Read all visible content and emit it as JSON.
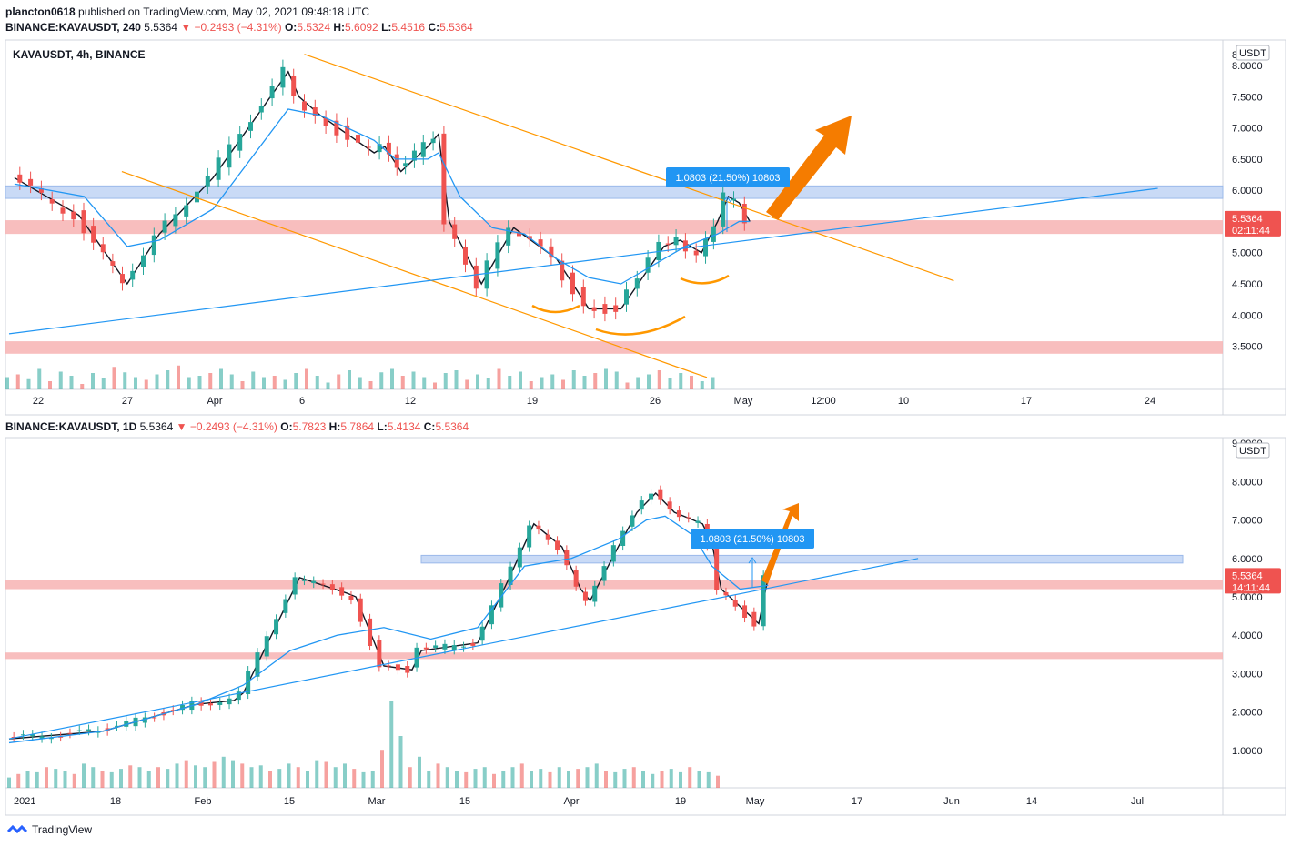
{
  "header": {
    "user": "plancton0618",
    "published_text": "published on TradingView.com, May 02, 2021 09:48:18 UTC",
    "line2": {
      "symbol": "BINANCE:KAVAUSDT, 240",
      "price": "5.5364",
      "change": "−0.2493 (−4.31%)",
      "O": "5.5324",
      "H": "5.6092",
      "L": "5.4516",
      "C": "5.5364"
    },
    "line3": {
      "symbol": "BINANCE:KAVAUSDT, 1D",
      "price": "5.5364",
      "change": "−0.2493 (−4.31%)",
      "O": "5.7823",
      "H": "5.7864",
      "L": "5.4134",
      "C": "5.5364"
    }
  },
  "colors": {
    "up": "#26a69a",
    "down": "#ef5350",
    "ma": "#2196f3",
    "trend": "#ff9800",
    "support_band": "#f7b3b3",
    "resistance_band": "#bfd4f5",
    "arrow": "#f57c00",
    "badge": "#2196f3",
    "last_price": "#ef5350"
  },
  "footer": {
    "brand": "TradingView"
  },
  "chart_data": [
    {
      "type": "line",
      "title": "KAVAUSDT, 4h, BINANCE",
      "currency": "USDT",
      "ylim": [
        3.1,
        8.35
      ],
      "y_ticks": [
        "8.0000",
        "7.5000",
        "7.0000",
        "6.5000",
        "6.0000",
        "5.5000",
        "5.0000",
        "4.5000",
        "4.0000",
        "3.5000"
      ],
      "y_top_partial": "8",
      "x_ticks": [
        "22",
        "27",
        "Apr",
        "6",
        "12",
        "19",
        "26",
        "May",
        "12:00",
        "10",
        "17",
        "24"
      ],
      "last_price": "5.5364",
      "countdown": "02:11:44",
      "measure_label": "1.0803 (21.50%) 10803",
      "bands": [
        {
          "kind": "resistance",
          "from": 5.87,
          "to": 6.07
        },
        {
          "kind": "support",
          "from": 5.3,
          "to": 5.52
        },
        {
          "kind": "support",
          "from": 3.38,
          "to": 3.58
        }
      ],
      "series": [
        {
          "type": "line",
          "x": [
            0.5,
            6.5,
            11,
            14,
            19,
            26,
            27,
            29,
            34,
            35,
            36.5,
            39,
            40,
            41,
            44,
            47,
            51,
            54,
            57,
            59,
            61,
            62.5,
            64.5,
            66,
            67,
            68,
            69
          ],
          "values": [
            6.2,
            5.6,
            4.5,
            5.3,
            6.2,
            7.9,
            7.5,
            7.2,
            6.6,
            6.7,
            6.3,
            6.7,
            6.9,
            5.5,
            4.5,
            5.4,
            4.9,
            4.1,
            4.1,
            4.6,
            5.1,
            5.2,
            5.0,
            5.5,
            5.9,
            5.8,
            5.5
          ]
        },
        {
          "type": "line",
          "x": [
            0.5,
            7,
            11,
            14,
            19,
            26,
            29,
            34,
            36,
            39,
            40,
            42,
            45,
            48,
            51,
            54,
            57,
            60,
            63,
            66,
            68,
            69
          ],
          "values": [
            6.1,
            5.9,
            5.1,
            5.2,
            5.7,
            7.3,
            7.2,
            6.8,
            6.5,
            6.5,
            6.6,
            5.9,
            5.4,
            5.3,
            4.9,
            4.6,
            4.5,
            4.8,
            5.1,
            5.3,
            5.5,
            5.5
          ]
        }
      ],
      "trendlines": [
        {
          "kind": "channel-top",
          "x": [
            27.5,
            88
          ],
          "y": [
            8.18,
            4.55
          ]
        },
        {
          "kind": "channel-bottom",
          "x": [
            10.5,
            65
          ],
          "y": [
            6.3,
            3.0
          ]
        },
        {
          "kind": "rising-support",
          "x": [
            0,
            107
          ],
          "y": [
            3.7,
            6.03
          ]
        }
      ],
      "volume": [
        18,
        22,
        15,
        30,
        12,
        26,
        20,
        8,
        24,
        16,
        33,
        25,
        18,
        14,
        22,
        28,
        35,
        18,
        20,
        24,
        30,
        22,
        12,
        26,
        18,
        20,
        14,
        24,
        30,
        20,
        10,
        22,
        28,
        18,
        12,
        25,
        30,
        20,
        26,
        18,
        10,
        24,
        28,
        14,
        22,
        16,
        30,
        20,
        26,
        12,
        18,
        22,
        14,
        28,
        20,
        24,
        30,
        26,
        10,
        18,
        22,
        28,
        16,
        24,
        20,
        12,
        18
      ]
    },
    {
      "type": "line",
      "title": "",
      "currency": "USDT",
      "ylim": [
        0.5,
        9.05
      ],
      "y_ticks": [
        "9.0000",
        "8.0000",
        "7.0000",
        "6.0000",
        "5.0000",
        "4.0000",
        "3.0000",
        "2.0000",
        "1.0000"
      ],
      "x_ticks": [
        "2021",
        "18",
        "Feb",
        "15",
        "Mar",
        "15",
        "Apr",
        "19",
        "May",
        "17",
        "Jun",
        "14",
        "Jul"
      ],
      "last_price": "5.5364",
      "countdown": "14:11:44",
      "measure_label": "1.0803 (21.50%) 10803",
      "bands": [
        {
          "kind": "resistance",
          "from": 5.88,
          "to": 6.08
        },
        {
          "kind": "support",
          "from": 5.2,
          "to": 5.43
        },
        {
          "kind": "support",
          "from": 3.38,
          "to": 3.55
        }
      ],
      "series": [
        {
          "type": "line",
          "x": [
            0,
            10,
            20,
            24,
            25,
            31,
            36,
            37,
            40,
            43,
            44,
            50,
            53,
            56,
            59,
            61,
            62,
            65,
            67,
            69,
            71,
            74,
            75,
            76,
            80,
            81
          ],
          "values": [
            1.3,
            1.5,
            2.2,
            2.3,
            2.5,
            5.5,
            5.1,
            5.0,
            3.2,
            3.1,
            3.6,
            3.8,
            5.3,
            6.9,
            6.3,
            5.2,
            4.9,
            6.3,
            7.2,
            7.7,
            7.2,
            6.9,
            6.4,
            5.2,
            4.3,
            5.5
          ]
        },
        {
          "type": "line",
          "x": [
            0,
            10,
            20,
            25,
            30,
            35,
            40,
            45,
            50,
            55,
            60,
            65,
            68,
            70,
            73,
            75,
            78,
            81
          ],
          "values": [
            1.2,
            1.5,
            2.2,
            2.7,
            3.6,
            4.0,
            4.2,
            3.9,
            4.2,
            5.8,
            6.0,
            6.5,
            7.0,
            7.1,
            6.6,
            5.8,
            5.2,
            5.3
          ]
        }
      ],
      "trendlines": [
        {
          "kind": "rising-support",
          "x": [
            0,
            97
          ],
          "y": [
            1.3,
            6.0
          ]
        }
      ],
      "volume": [
        6,
        8,
        10,
        9,
        12,
        11,
        10,
        8,
        14,
        12,
        10,
        9,
        11,
        13,
        12,
        10,
        12,
        11,
        14,
        16,
        13,
        12,
        15,
        18,
        16,
        14,
        12,
        13,
        10,
        11,
        14,
        12,
        10,
        16,
        15,
        12,
        14,
        11,
        9,
        10,
        22,
        50,
        30,
        12,
        18,
        10,
        14,
        12,
        10,
        9,
        11,
        12,
        8,
        10,
        12,
        14,
        10,
        11,
        9,
        12,
        10,
        11,
        12,
        14,
        10,
        9,
        11,
        12,
        10,
        8,
        10,
        11,
        9,
        12,
        10,
        9,
        7
      ]
    }
  ]
}
